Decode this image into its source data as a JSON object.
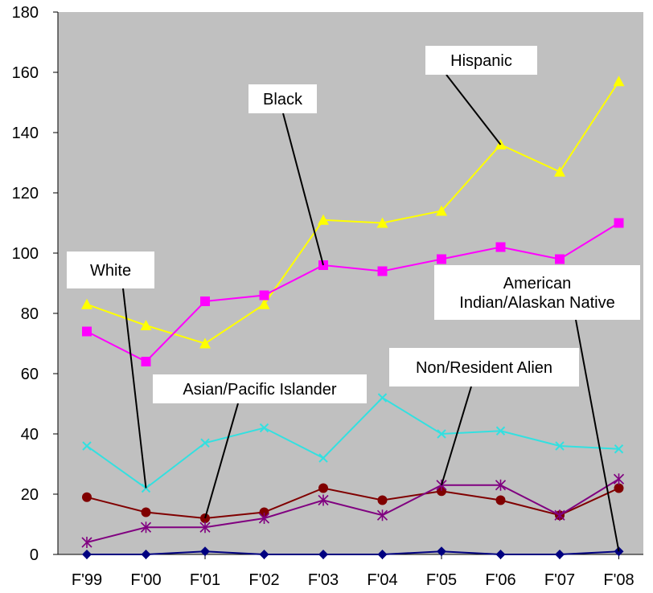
{
  "chart_data": {
    "type": "line",
    "title": "",
    "xlabel": "",
    "ylabel": "",
    "categories": [
      "F'99",
      "F'00",
      "F'01",
      "F'02",
      "F'03",
      "F'04",
      "F'05",
      "F'06",
      "F'07",
      "F'08"
    ],
    "ylim": [
      0,
      180
    ],
    "yticks": [
      0,
      20,
      40,
      60,
      80,
      100,
      120,
      140,
      160,
      180
    ],
    "grid": false,
    "legend": "none (series identified by callout labels)",
    "plot_background": "#c0c0c0",
    "series": [
      {
        "name": "Hispanic",
        "color": "#ffff00",
        "marker": "triangle",
        "values": [
          83,
          76,
          70,
          83,
          111,
          110,
          114,
          136,
          127,
          157
        ]
      },
      {
        "name": "Black",
        "color": "#ff00ff",
        "marker": "square",
        "values": [
          74,
          64,
          84,
          86,
          96,
          94,
          98,
          102,
          98,
          110
        ]
      },
      {
        "name": "White",
        "color": "#33e0e0",
        "marker": "x",
        "values": [
          36,
          22,
          37,
          42,
          32,
          52,
          40,
          41,
          36,
          35
        ]
      },
      {
        "name": "Asian/Pacific Islander",
        "color": "#800000",
        "marker": "circle",
        "values": [
          19,
          14,
          12,
          14,
          22,
          18,
          21,
          18,
          13,
          22
        ]
      },
      {
        "name": "Non/Resident Alien",
        "color": "#800080",
        "marker": "asterisk",
        "values": [
          4,
          9,
          9,
          12,
          18,
          13,
          23,
          23,
          13,
          25
        ]
      },
      {
        "name": "American Indian/Alaskan Native",
        "color": "#000080",
        "marker": "diamond",
        "values": [
          0,
          0,
          1,
          0,
          0,
          0,
          1,
          0,
          0,
          1
        ]
      }
    ],
    "annotations": [
      {
        "series": "Hispanic",
        "lines": [
          "Hispanic"
        ],
        "point_index": 7
      },
      {
        "series": "Black",
        "lines": [
          "Black"
        ],
        "point_index": 4
      },
      {
        "series": "White",
        "lines": [
          "White"
        ],
        "point_index": 1
      },
      {
        "series": "Asian/Pacific Islander",
        "lines": [
          "Asian/Pacific Islander"
        ],
        "point_index": 2
      },
      {
        "series": "Non/Resident Alien",
        "lines": [
          "Non/Resident Alien"
        ],
        "point_index": 6
      },
      {
        "series": "American Indian/Alaskan Native",
        "lines": [
          "American",
          "Indian/Alaskan Native"
        ],
        "point_index": 9
      }
    ]
  }
}
